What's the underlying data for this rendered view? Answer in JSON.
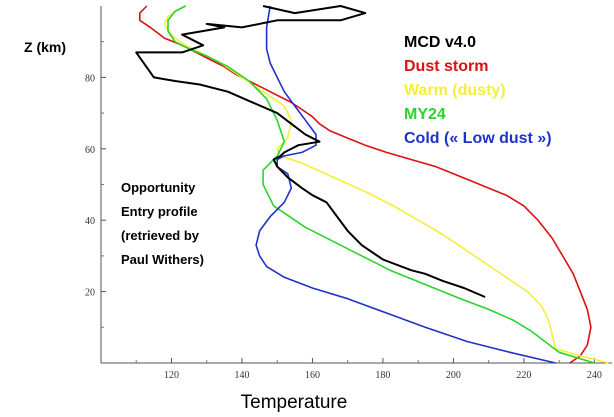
{
  "chart_data": {
    "type": "line",
    "xlabel": "Temperature",
    "ylabel": "Z (km)",
    "xlim": [
      100,
      245
    ],
    "ylim": [
      0,
      100
    ],
    "xticks": [
      120,
      140,
      160,
      180,
      200,
      220,
      240
    ],
    "yticks": [
      20,
      40,
      60,
      80
    ],
    "grid": false,
    "legend_position": "top-right",
    "annotation": [
      "Opportunity",
      "Entry profile",
      "(retrieved by",
      "Paul Withers)"
    ],
    "series": [
      {
        "name": "MCD v4.0",
        "color": "#000000",
        "x": [
          209,
          203,
          197,
          192,
          188,
          180,
          174,
          170,
          167,
          164,
          160,
          157,
          153,
          150,
          149,
          151,
          152,
          156,
          162,
          158,
          154,
          150,
          143,
          136,
          128,
          121,
          115,
          110,
          116,
          123,
          129,
          123,
          135,
          130,
          140,
          150,
          160,
          168,
          175,
          168,
          155,
          146
        ],
        "y": [
          18.5,
          21,
          23,
          25,
          26,
          29,
          33,
          37,
          41,
          45,
          47,
          49,
          52,
          55,
          57,
          58,
          59,
          61,
          62,
          64,
          67,
          70,
          73,
          76,
          78,
          79,
          80,
          87,
          87,
          87,
          89,
          92,
          94,
          95,
          94,
          96,
          96,
          96,
          98,
          100,
          98,
          100
        ]
      },
      {
        "name": "Dust storm",
        "color": "#dd1111",
        "x": [
          233,
          236,
          238,
          239,
          238,
          236,
          234,
          231,
          228,
          224,
          220,
          215,
          210,
          205,
          200,
          195,
          188,
          181,
          175,
          170,
          165,
          162,
          160,
          157,
          154,
          150,
          146,
          142,
          138,
          135,
          131,
          127,
          123,
          118,
          114,
          111,
          111,
          113
        ],
        "y": [
          0,
          2,
          5,
          10,
          15,
          20,
          25,
          30,
          35,
          40,
          44,
          47,
          49,
          51,
          53,
          55,
          57,
          59,
          61,
          63,
          65,
          67,
          69,
          71,
          73,
          75,
          77,
          79,
          81,
          83,
          85,
          87,
          89,
          91,
          94,
          96,
          98,
          100
        ]
      },
      {
        "name": "Warm (dusty)",
        "color": "#f5ef3a",
        "x": [
          244,
          236,
          229,
          228,
          227,
          225,
          221,
          215,
          209,
          203,
          197,
          190,
          183,
          175,
          166,
          157,
          151,
          150,
          153,
          154,
          152,
          146,
          140,
          134,
          128,
          124,
          121,
          119,
          118,
          119,
          121,
          124
        ],
        "y": [
          0,
          2,
          4,
          8,
          12,
          16,
          20,
          24,
          28,
          32,
          36,
          40,
          44,
          48,
          52,
          56,
          58,
          60,
          63,
          68,
          72,
          76,
          80,
          84,
          87,
          89,
          91,
          93,
          95,
          97,
          98.5,
          100
        ]
      },
      {
        "name": "MY24",
        "color": "#2bd42b",
        "x": [
          240,
          230,
          226,
          222,
          217,
          210,
          202,
          192,
          182,
          170,
          158,
          149,
          146,
          146,
          149,
          150,
          152,
          150,
          147,
          142,
          136,
          130,
          125,
          121,
          119,
          119,
          121,
          124
        ],
        "y": [
          0,
          3,
          6,
          9,
          12,
          15,
          18,
          22,
          26,
          32,
          38,
          44,
          50,
          54,
          57,
          58,
          62,
          68,
          74,
          79,
          83,
          86,
          88,
          90,
          93,
          96,
          98.5,
          100
        ]
      },
      {
        "name": "Cold (« Low dust »)",
        "color": "#1f33c8",
        "x": [
          229,
          216,
          204,
          192,
          181,
          170,
          160,
          152,
          147,
          145,
          144,
          145,
          148,
          152,
          154,
          153,
          150,
          150,
          152,
          157,
          161,
          161,
          158,
          155,
          152,
          150,
          148,
          147,
          147,
          148
        ],
        "y": [
          0,
          3,
          6,
          10,
          14,
          18,
          21,
          24,
          27,
          30,
          33,
          37,
          41,
          45,
          49,
          53,
          55,
          57,
          58,
          59,
          61,
          64,
          68,
          72,
          76,
          80,
          84,
          88,
          94,
          100
        ]
      }
    ]
  }
}
